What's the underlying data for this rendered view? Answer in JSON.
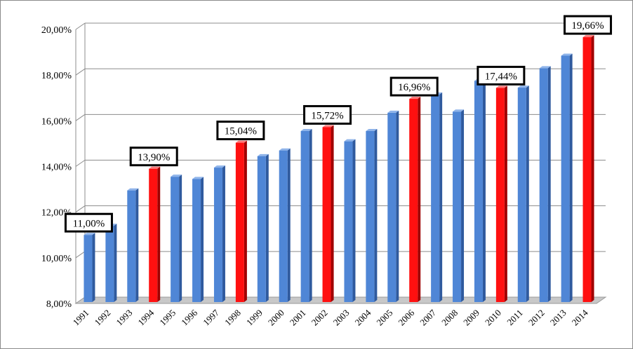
{
  "chart_data": {
    "type": "bar",
    "title": "",
    "xlabel": "",
    "ylabel": "",
    "ylim": [
      8,
      20
    ],
    "yticks": [
      "8,00%",
      "10,00%",
      "12,00%",
      "14,00%",
      "16,00%",
      "18,00%",
      "20,00%"
    ],
    "ytick_values": [
      8,
      10,
      12,
      14,
      16,
      18,
      20
    ],
    "grid": true,
    "legend": "none",
    "categories": [
      "1991",
      "1992",
      "1993",
      "1994",
      "1995",
      "1996",
      "1997",
      "1998",
      "1999",
      "2000",
      "2001",
      "2002",
      "2003",
      "2004",
      "2005",
      "2006",
      "2007",
      "2008",
      "2009",
      "2010",
      "2011",
      "2012",
      "2013",
      "2014"
    ],
    "values": [
      11.0,
      11.4,
      12.95,
      13.9,
      13.55,
      13.45,
      13.95,
      15.04,
      14.45,
      14.7,
      15.55,
      15.72,
      15.1,
      15.55,
      16.35,
      16.96,
      17.15,
      16.4,
      17.75,
      17.44,
      17.45,
      18.3,
      18.85,
      19.66
    ],
    "highlighted": [
      "1994",
      "1998",
      "2002",
      "2006",
      "2010",
      "2014"
    ],
    "data_labels": [
      {
        "category": "1991",
        "text": "11,00%"
      },
      {
        "category": "1994",
        "text": "13,90%"
      },
      {
        "category": "1998",
        "text": "15,04%"
      },
      {
        "category": "2002",
        "text": "15,72%"
      },
      {
        "category": "2006",
        "text": "16,96%"
      },
      {
        "category": "2010",
        "text": "17,44%"
      },
      {
        "category": "2014",
        "text": "19,66%"
      }
    ],
    "colors": {
      "bar": "#4f86d6",
      "bar_side": "#2f5a9e",
      "bar_top": "#8fb4ea",
      "highlight": "#ff1010",
      "highlight_side": "#a00000",
      "highlight_top": "#ff7a7a",
      "grid": "#8c8c8c"
    }
  }
}
